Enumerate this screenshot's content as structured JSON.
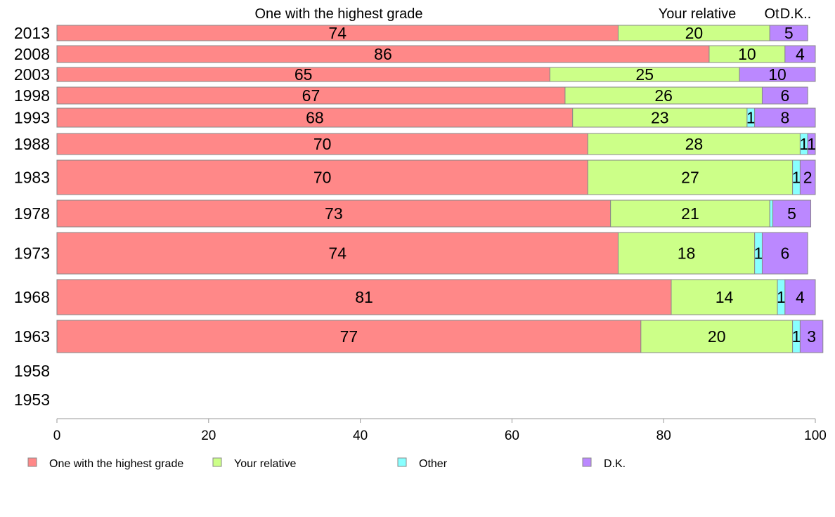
{
  "chart_data": {
    "type": "bar",
    "orientation": "horizontal",
    "stacked": true,
    "categories": [
      "2013",
      "2008",
      "2003",
      "1998",
      "1993",
      "1988",
      "1983",
      "1978",
      "1973",
      "1968",
      "1963",
      "1958",
      "1953"
    ],
    "series": [
      {
        "name": "One with the highest grade",
        "color": "#ff8888",
        "values": [
          74,
          86,
          65,
          67,
          68,
          70,
          70,
          73,
          74,
          81,
          77,
          null,
          null
        ],
        "labels": [
          "74",
          "86",
          "65",
          "67",
          "68",
          "70",
          "70",
          "73",
          "74",
          "81",
          "77",
          "",
          ""
        ]
      },
      {
        "name": "Your relative",
        "color": "#ccff88",
        "values": [
          20,
          10,
          25,
          26,
          23,
          28,
          27,
          21,
          18,
          14,
          20,
          null,
          null
        ],
        "labels": [
          "20",
          "10",
          "25",
          "26",
          "23",
          "28",
          "27",
          "21",
          "18",
          "14",
          "20",
          "",
          ""
        ]
      },
      {
        "name": "Other",
        "color": "#88ffff",
        "values": [
          0,
          0,
          0,
          0,
          1,
          1,
          1,
          0.4,
          1,
          1,
          1,
          null,
          null
        ],
        "labels": [
          "",
          "",
          "",
          "",
          "1",
          "1",
          "1",
          "",
          "1",
          "1",
          "1",
          "",
          ""
        ]
      },
      {
        "name": "D.K.",
        "color": "#bb88ff",
        "values": [
          5,
          4,
          10,
          6,
          8,
          1,
          2,
          5,
          6,
          4,
          3,
          null,
          null
        ],
        "labels": [
          "5",
          "4",
          "10",
          "6",
          "8",
          "1",
          "2",
          "5",
          "6",
          "4",
          "3",
          "",
          ""
        ]
      }
    ],
    "column_headers": [
      "One with the highest grade",
      "Your relative",
      "Ot",
      "D.K.."
    ],
    "xlim": [
      0,
      100
    ],
    "xticks": [
      "0",
      "20",
      "40",
      "60",
      "80",
      "100"
    ],
    "legend": {
      "position": "bottom",
      "items": [
        "One with the highest grade",
        "Your relative",
        "Other",
        "D.K."
      ]
    },
    "grid": false
  }
}
